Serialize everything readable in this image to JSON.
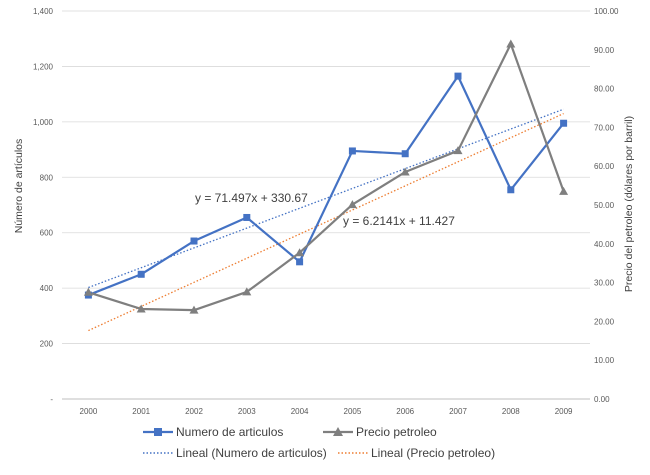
{
  "colors": {
    "series1": "#4472C4",
    "series2": "#7F7F7F",
    "trend1": "#4472C4",
    "trend2": "#ED7D31",
    "grid": "#D9D9D9",
    "axis": "#BFBFBF"
  },
  "chart_data": {
    "type": "line",
    "title": "",
    "categories": [
      "2000",
      "2001",
      "2002",
      "2003",
      "2004",
      "2005",
      "2006",
      "2007",
      "2008",
      "2009"
    ],
    "y_left": {
      "label": "Número de artículos",
      "ticks": [
        "-",
        "200",
        "400",
        "600",
        "800",
        "1,000",
        "1,200",
        "1,400"
      ],
      "range": [
        0,
        1400
      ]
    },
    "y_right": {
      "label": "Precio del petroleo (dólares por barril)",
      "ticks": [
        "0.00",
        "10.00",
        "20.00",
        "30.00",
        "40.00",
        "50.00",
        "60.00",
        "70.00",
        "80.00",
        "90.00",
        "100.00"
      ],
      "range": [
        0,
        100
      ]
    },
    "series": [
      {
        "name": "Numero de articulos",
        "axis": "left",
        "marker": "square",
        "values": [
          375,
          450,
          570,
          655,
          495,
          895,
          885,
          1165,
          755,
          995
        ]
      },
      {
        "name": "Precio petroleo",
        "axis": "right",
        "marker": "triangle",
        "values": [
          27.5,
          23.2,
          22.9,
          27.6,
          37.7,
          50.1,
          58.5,
          64.0,
          91.5,
          53.5
        ]
      }
    ],
    "trendlines": [
      {
        "name": "Lineal (Numero de articulos)",
        "axis": "left",
        "slope": 71.497,
        "intercept": 330.67,
        "equation": "y = 71.497x + 330.67"
      },
      {
        "name": "Lineal (Precio petroleo)",
        "axis": "right",
        "slope": 6.2141,
        "intercept": 11.427,
        "equation": "y = 6.2141x + 11.427"
      }
    ],
    "grid": true,
    "legend_position": "bottom"
  }
}
